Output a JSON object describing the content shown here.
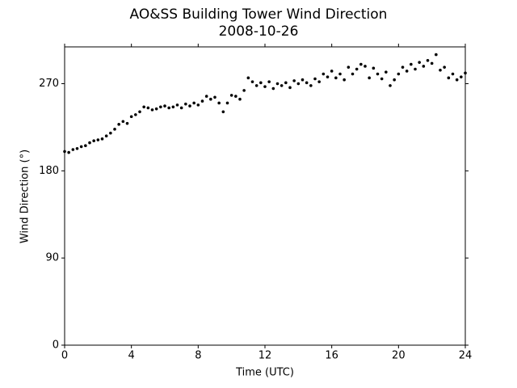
{
  "chart_data": {
    "type": "scatter",
    "title": "AO&SS Building Tower Wind Direction",
    "subtitle": "2008-10-26",
    "x_label": "Time (UTC)",
    "y_label": "Wind Direction (°)",
    "color": "#000000",
    "xlim": [
      0,
      24
    ],
    "xticks": [
      0,
      4,
      8,
      12,
      16,
      20,
      24
    ],
    "ylim": [
      0,
      308
    ],
    "yticks": [
      0,
      90,
      180,
      270
    ],
    "x": [
      0,
      0.25,
      0.5,
      0.75,
      1,
      1.25,
      1.5,
      1.75,
      2,
      2.25,
      2.5,
      2.75,
      3,
      3.25,
      3.5,
      3.75,
      4,
      4.25,
      4.5,
      4.75,
      5,
      5.25,
      5.5,
      5.75,
      6,
      6.25,
      6.5,
      6.75,
      7,
      7.25,
      7.5,
      7.75,
      8,
      8.25,
      8.5,
      8.75,
      9,
      9.25,
      9.5,
      9.75,
      10,
      10.25,
      10.5,
      10.75,
      11,
      11.25,
      11.5,
      11.75,
      12,
      12.25,
      12.5,
      12.75,
      13,
      13.25,
      13.5,
      13.75,
      14,
      14.25,
      14.5,
      14.75,
      15,
      15.25,
      15.5,
      15.75,
      16,
      16.25,
      16.5,
      16.75,
      17,
      17.25,
      17.5,
      17.75,
      18,
      18.25,
      18.5,
      18.75,
      19,
      19.25,
      19.5,
      19.75,
      20,
      20.25,
      20.5,
      20.75,
      21,
      21.25,
      21.5,
      21.75,
      22,
      22.25,
      22.5,
      22.75,
      23,
      23.25,
      23.5,
      23.75,
      24
    ],
    "values": [
      200,
      199,
      202,
      203,
      205,
      206,
      209,
      211,
      212,
      213,
      216,
      219,
      223,
      228,
      231,
      229,
      236,
      238,
      241,
      246,
      245,
      243,
      244,
      246,
      247,
      245,
      246,
      248,
      245,
      249,
      247,
      250,
      248,
      252,
      257,
      254,
      256,
      250,
      241,
      250,
      258,
      257,
      254,
      263,
      276,
      272,
      268,
      271,
      267,
      272,
      265,
      270,
      268,
      271,
      266,
      273,
      270,
      274,
      271,
      268,
      275,
      272,
      280,
      277,
      283,
      276,
      280,
      274,
      287,
      280,
      285,
      290,
      288,
      276,
      286,
      280,
      275,
      282,
      268,
      274,
      280,
      287,
      283,
      290,
      285,
      292,
      288,
      294,
      291,
      300,
      284,
      287,
      276,
      280,
      274,
      277,
      281
    ]
  }
}
